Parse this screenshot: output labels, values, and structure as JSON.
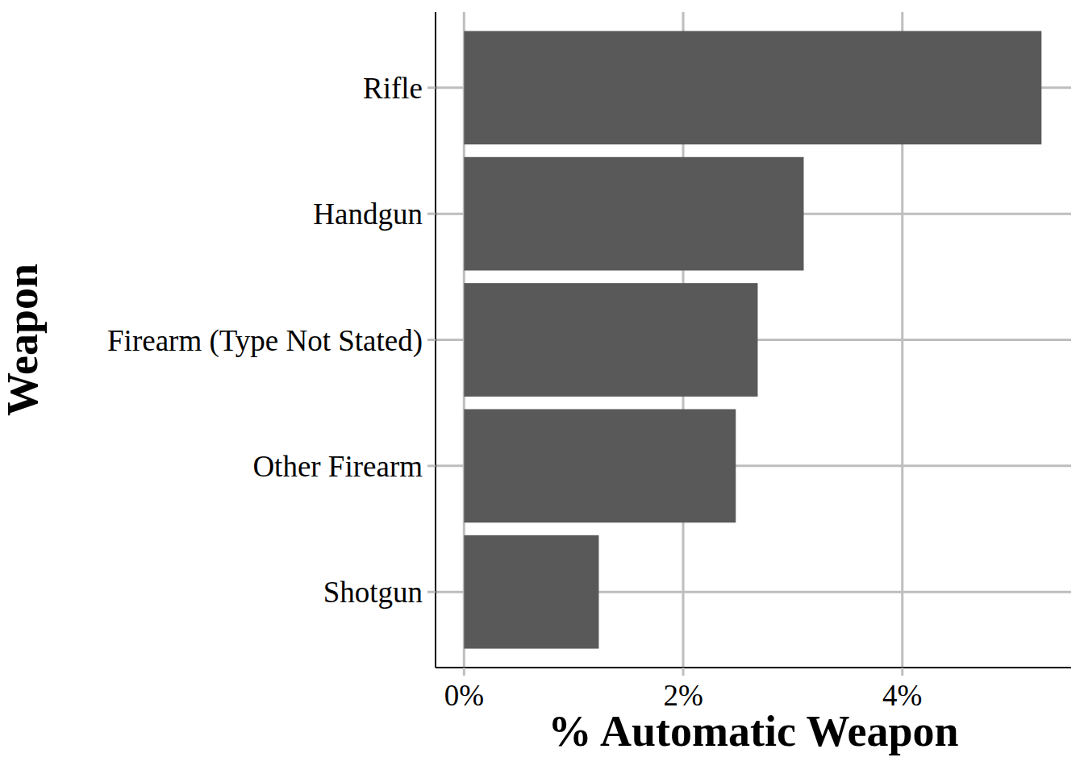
{
  "chart_data": {
    "type": "bar",
    "orientation": "horizontal",
    "x_label": "% Automatic Weapon",
    "y_label": "Weapon",
    "categories": [
      "Rifle",
      "Handgun",
      "Firearm (Type Not Stated)",
      "Other Firearm",
      "Shotgun"
    ],
    "values": [
      5.27,
      3.1,
      2.68,
      2.48,
      1.23
    ],
    "color": "#595959",
    "xlim": [
      -0.26,
      5.54
    ],
    "xticks": [
      {
        "value": 0,
        "label": "0%"
      },
      {
        "value": 2,
        "label": "2%"
      },
      {
        "value": 4,
        "label": "4%"
      }
    ],
    "grid": true
  }
}
